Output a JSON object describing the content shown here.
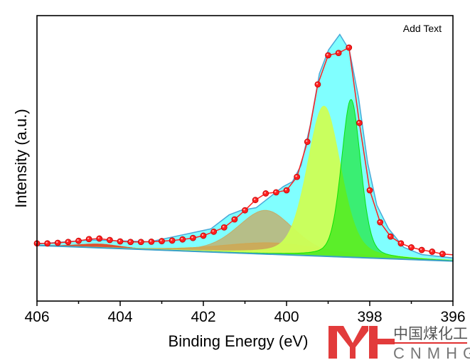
{
  "chart_data": {
    "type": "line",
    "title": "",
    "xlabel": "Binding Energy (eV)",
    "ylabel": "Intensity (a.u.)",
    "xlim": [
      406,
      396
    ],
    "x_reversed": true,
    "ylim": [
      0,
      100
    ],
    "y_ticks_shown": false,
    "grid": false,
    "x_ticks": [
      406,
      404,
      402,
      400,
      398,
      396
    ],
    "annotation": "Add Text",
    "baseline": {
      "x": [
        406,
        396
      ],
      "y": [
        19.5,
        14.0
      ],
      "color": "#3aa0c8"
    },
    "measured": {
      "color": "#ff2020",
      "x": [
        406.0,
        405.75,
        405.5,
        405.25,
        405.0,
        404.75,
        404.5,
        404.25,
        404.0,
        403.75,
        403.5,
        403.25,
        403.0,
        402.75,
        402.5,
        402.25,
        402.0,
        401.75,
        401.5,
        401.25,
        401.0,
        400.75,
        400.5,
        400.25,
        400.0,
        399.75,
        399.5,
        399.25,
        399.0,
        398.75,
        398.5,
        398.25,
        398.0,
        397.75,
        397.5,
        397.25,
        397.0,
        396.75,
        396.5,
        396.25
      ],
      "y": [
        20.2,
        20.2,
        20.4,
        20.7,
        21.1,
        21.7,
        21.9,
        21.4,
        20.9,
        20.7,
        20.7,
        20.8,
        21.0,
        21.2,
        21.6,
        22.1,
        22.9,
        24.3,
        25.8,
        28.6,
        31.8,
        35.4,
        37.7,
        38.1,
        38.8,
        43.5,
        55.8,
        75.9,
        86.1,
        86.9,
        88.8,
        62.4,
        38.8,
        27.6,
        22.6,
        20.2,
        18.8,
        17.9,
        17.3,
        16.5
      ]
    },
    "envelope": {
      "color": "#80ffff",
      "stroke": "#4aa8d8",
      "x": [
        406.0,
        404.72,
        403.27,
        401.82,
        401.38,
        401.09,
        400.73,
        400.37,
        400.08,
        399.86,
        399.65,
        399.43,
        399.21,
        398.99,
        398.72,
        398.49,
        398.27,
        398.05,
        397.83,
        397.55,
        397.18,
        396.75,
        396.0
      ],
      "y": [
        20.0,
        21.4,
        20.8,
        25.3,
        30.2,
        31.8,
        32.7,
        36.8,
        40.1,
        41.8,
        47.6,
        61.6,
        79.7,
        88.0,
        93.4,
        87.9,
        71.4,
        48.4,
        33.6,
        25.4,
        18.8,
        16.3,
        15.1
      ]
    },
    "components": [
      {
        "center": 404.5,
        "height": 1.3,
        "fwhm": 1.2,
        "color": "#e8401a",
        "opacity": 0.9
      },
      {
        "center": 400.3,
        "height": 4.0,
        "fwhm": 3.0,
        "color": "#e8a020",
        "opacity": 0.8
      },
      {
        "center": 400.5,
        "height": 15.3,
        "fwhm": 1.6,
        "color": "#c8a860",
        "opacity": 0.75
      },
      {
        "center": 399.1,
        "height": 52.6,
        "fwhm": 0.95,
        "color": "#ccff55",
        "opacity": 0.95
      },
      {
        "center": 398.45,
        "height": 55.3,
        "fwhm": 0.55,
        "color": "#00e000",
        "opacity": 0.55
      }
    ]
  },
  "watermark": {
    "logo_letters": "MH",
    "chinese": "中国煤化工",
    "english": "CNMHG",
    "color": "#e03030"
  }
}
